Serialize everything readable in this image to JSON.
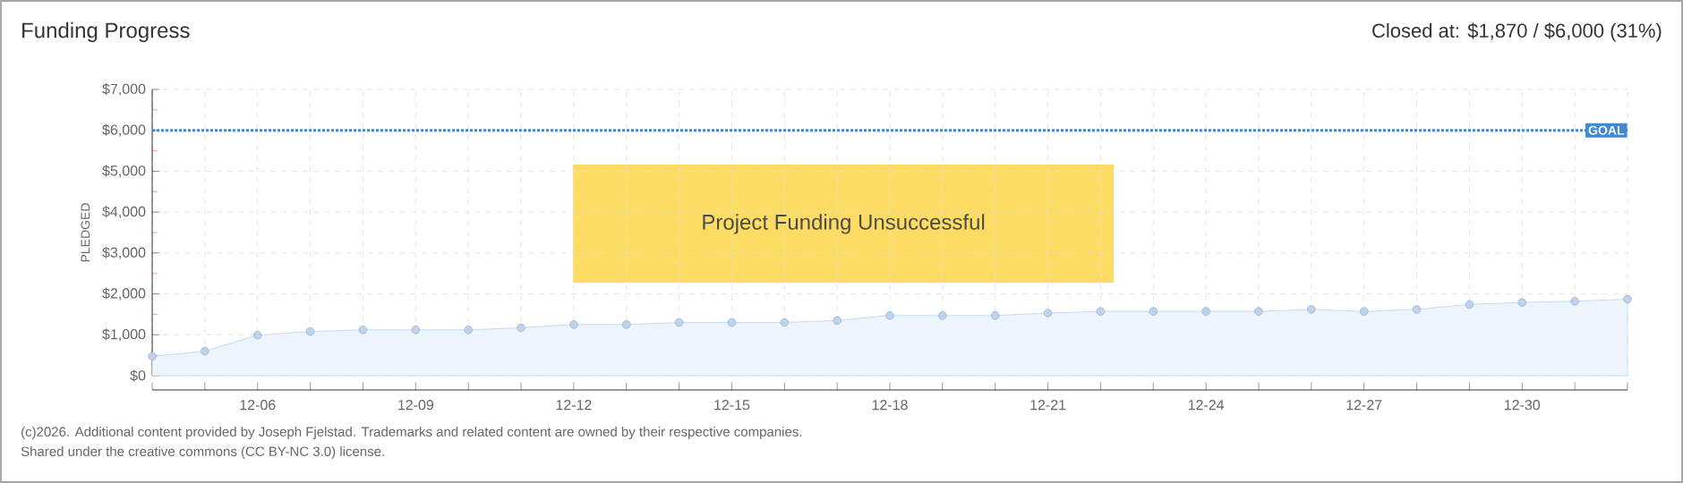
{
  "chart_data": {
    "type": "area",
    "title": "Funding Progress",
    "ylabel": "PLEDGED",
    "categories": [
      null,
      null,
      "12-06",
      null,
      null,
      "12-09",
      null,
      null,
      "12-12",
      null,
      null,
      "12-15",
      null,
      null,
      "12-18",
      null,
      null,
      "12-21",
      null,
      null,
      "12-24",
      null,
      null,
      "12-27",
      null,
      null,
      "12-30",
      null,
      null
    ],
    "series": [
      {
        "color": "#b9d3f0",
        "values": [
          470,
          600,
          990,
          1080,
          1120,
          1120,
          1120,
          1170,
          1250,
          1250,
          1300,
          1300,
          1300,
          1350,
          1470,
          1470,
          1470,
          1530,
          1570,
          1570,
          1570,
          1570,
          1620,
          1570,
          1620,
          1740,
          1790,
          1820,
          1870
        ]
      }
    ],
    "ylim": [
      0,
      7000
    ],
    "yticks": [
      {
        "value": 0,
        "label": "$0"
      },
      {
        "value": 1000,
        "label": "$1,000"
      },
      {
        "value": 2000,
        "label": "$2,000"
      },
      {
        "value": 3000,
        "label": "$3,000"
      },
      {
        "value": 4000,
        "label": "$4,000"
      },
      {
        "value": 5000,
        "label": "$5,000"
      },
      {
        "value": 6000,
        "label": "$6,000"
      },
      {
        "value": 7000,
        "label": "$7,000"
      }
    ],
    "ref_lines": [
      {
        "axis": "y",
        "value": 6000,
        "label": "GOAL",
        "color": "#3d89d6",
        "line_style": "dotted"
      }
    ],
    "grid": true,
    "marker": "circle",
    "annotations": [
      "Closed at: $1,870 / $6,000 (31%)",
      "Project Funding Unsuccessful",
      "(c)2026. Additional content provided by Joseph Fjelstad. Trademarks and related content are owned by their respective companies.",
      "Shared under the creative commons (CC BY-NC 3.0) license."
    ]
  }
}
